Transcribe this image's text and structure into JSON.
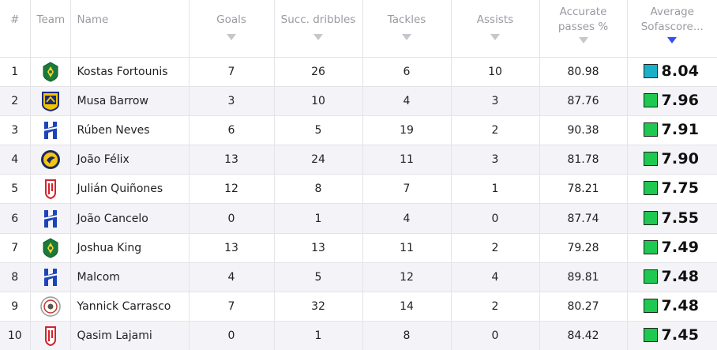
{
  "headers": {
    "rank": "#",
    "team": "Team",
    "name": "Name",
    "goals": "Goals",
    "dribbles": "Succ. dribbles",
    "tackles": "Tackles",
    "assists": "Assists",
    "passes_line1": "Accurate",
    "passes_line2": "passes %",
    "rating_line1": "Average",
    "rating_line2": "Sofascore..."
  },
  "colors": {
    "rating_excellent": "#1ec851",
    "rating_top": "#1ab0c8",
    "sort_active": "#374df5"
  },
  "rows": [
    {
      "rank": "1",
      "team_icon": "al-khaleej-icon",
      "name": "Kostas Fortounis",
      "goals": "7",
      "dribbles": "26",
      "tackles": "6",
      "assists": "10",
      "passes": "80.98",
      "rating": "8.04",
      "rating_color": "#1ab0c8"
    },
    {
      "rank": "2",
      "team_icon": "al-taawoun-icon",
      "name": "Musa Barrow",
      "goals": "3",
      "dribbles": "10",
      "tackles": "4",
      "assists": "3",
      "passes": "87.76",
      "rating": "7.96",
      "rating_color": "#1ec851"
    },
    {
      "rank": "3",
      "team_icon": "al-hilal-icon",
      "name": "Rúben Neves",
      "goals": "6",
      "dribbles": "5",
      "tackles": "19",
      "assists": "2",
      "passes": "90.38",
      "rating": "7.91",
      "rating_color": "#1ec851"
    },
    {
      "rank": "4",
      "team_icon": "al-nassr-icon",
      "name": "João Félix",
      "goals": "13",
      "dribbles": "24",
      "tackles": "11",
      "assists": "3",
      "passes": "81.78",
      "rating": "7.90",
      "rating_color": "#1ec851"
    },
    {
      "rank": "5",
      "team_icon": "al-qadsiah-icon",
      "name": "Julián Quiñones",
      "goals": "12",
      "dribbles": "8",
      "tackles": "7",
      "assists": "1",
      "passes": "78.21",
      "rating": "7.75",
      "rating_color": "#1ec851"
    },
    {
      "rank": "6",
      "team_icon": "al-hilal-icon",
      "name": "João Cancelo",
      "goals": "0",
      "dribbles": "1",
      "tackles": "4",
      "assists": "0",
      "passes": "87.74",
      "rating": "7.55",
      "rating_color": "#1ec851"
    },
    {
      "rank": "7",
      "team_icon": "al-khaleej-icon",
      "name": "Joshua King",
      "goals": "13",
      "dribbles": "13",
      "tackles": "11",
      "assists": "2",
      "passes": "79.28",
      "rating": "7.49",
      "rating_color": "#1ec851"
    },
    {
      "rank": "8",
      "team_icon": "al-hilal-icon",
      "name": "Malcom",
      "goals": "4",
      "dribbles": "5",
      "tackles": "12",
      "assists": "4",
      "passes": "89.81",
      "rating": "7.48",
      "rating_color": "#1ec851"
    },
    {
      "rank": "9",
      "team_icon": "al-shabab-icon",
      "name": "Yannick Carrasco",
      "goals": "7",
      "dribbles": "32",
      "tackles": "14",
      "assists": "2",
      "passes": "80.27",
      "rating": "7.48",
      "rating_color": "#1ec851"
    },
    {
      "rank": "10",
      "team_icon": "al-qadsiah-icon",
      "name": "Qasim Lajami",
      "goals": "0",
      "dribbles": "1",
      "tackles": "8",
      "assists": "0",
      "passes": "84.42",
      "rating": "7.45",
      "rating_color": "#1ec851"
    }
  ]
}
